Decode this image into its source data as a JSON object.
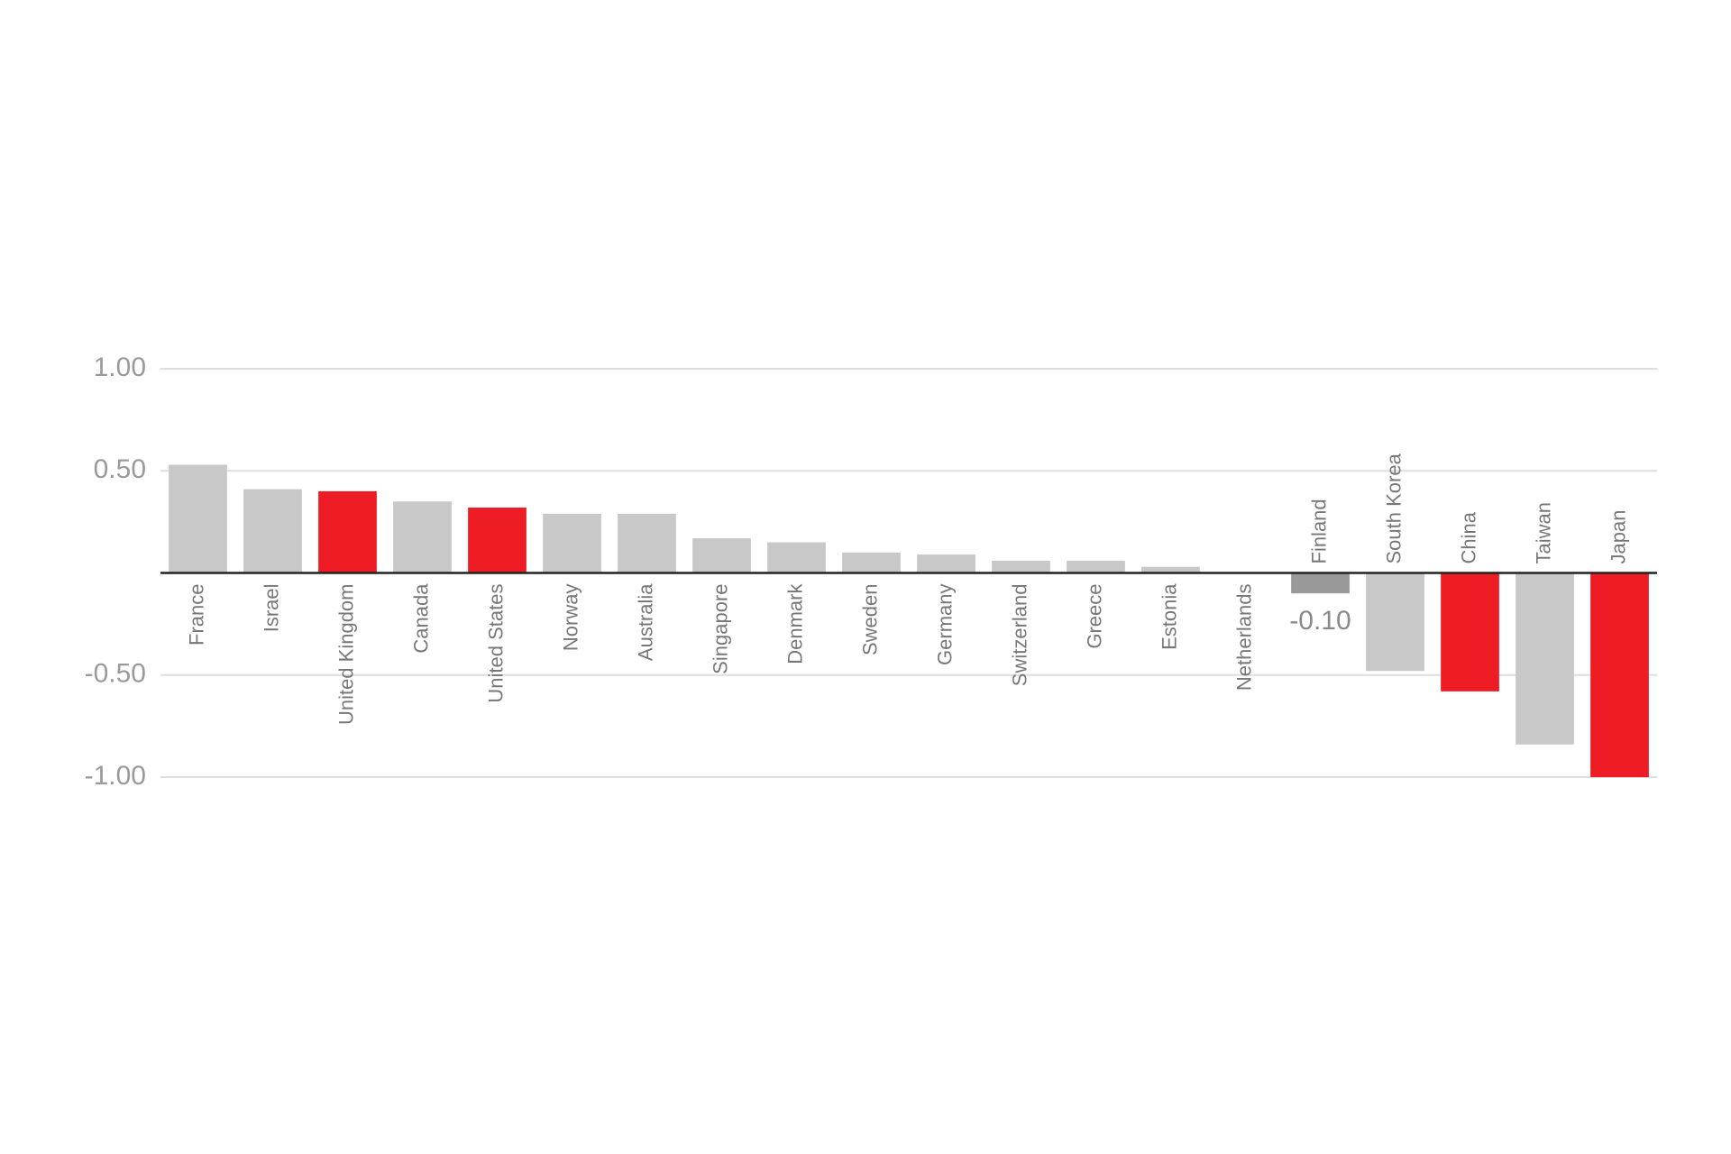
{
  "chart_data": {
    "type": "bar",
    "categories": [
      "France",
      "Israel",
      "United Kingdom",
      "Canada",
      "United States",
      "Norway",
      "Australia",
      "Singapore",
      "Denmark",
      "Sweden",
      "Germany",
      "Switzerland",
      "Greece",
      "Estonia",
      "Netherlands",
      "Finland",
      "South Korea",
      "China",
      "Taiwan",
      "Japan"
    ],
    "values": [
      0.53,
      0.41,
      0.4,
      0.35,
      0.32,
      0.29,
      0.29,
      0.17,
      0.15,
      0.1,
      0.09,
      0.06,
      0.06,
      0.03,
      0,
      -0.1,
      -0.48,
      -0.58,
      -0.84,
      -1.0
    ],
    "value_labels": [
      null,
      null,
      null,
      null,
      null,
      null,
      null,
      null,
      null,
      null,
      null,
      null,
      null,
      null,
      null,
      "-0.10",
      null,
      null,
      null,
      null
    ],
    "colors": [
      "#c8c8c8",
      "#c8c8c8",
      "#ee1c25",
      "#c8c8c8",
      "#ee1c25",
      "#c8c8c8",
      "#c8c8c8",
      "#c8c8c8",
      "#c8c8c8",
      "#c8c8c8",
      "#c8c8c8",
      "#c8c8c8",
      "#c8c8c8",
      "#c8c8c8",
      "#c8c8c8",
      "#999999",
      "#c8c8c8",
      "#ee1c25",
      "#c8c8c8",
      "#ee1c25"
    ],
    "ylim": [
      -1.0,
      1.0
    ],
    "yticks": [
      {
        "value": -1,
        "label": "-1.00"
      },
      {
        "value": -0.5,
        "label": "-0.50"
      },
      {
        "value": 0.5,
        "label": "0.50"
      },
      {
        "value": 1,
        "label": "1.00"
      }
    ],
    "grid": true
  }
}
